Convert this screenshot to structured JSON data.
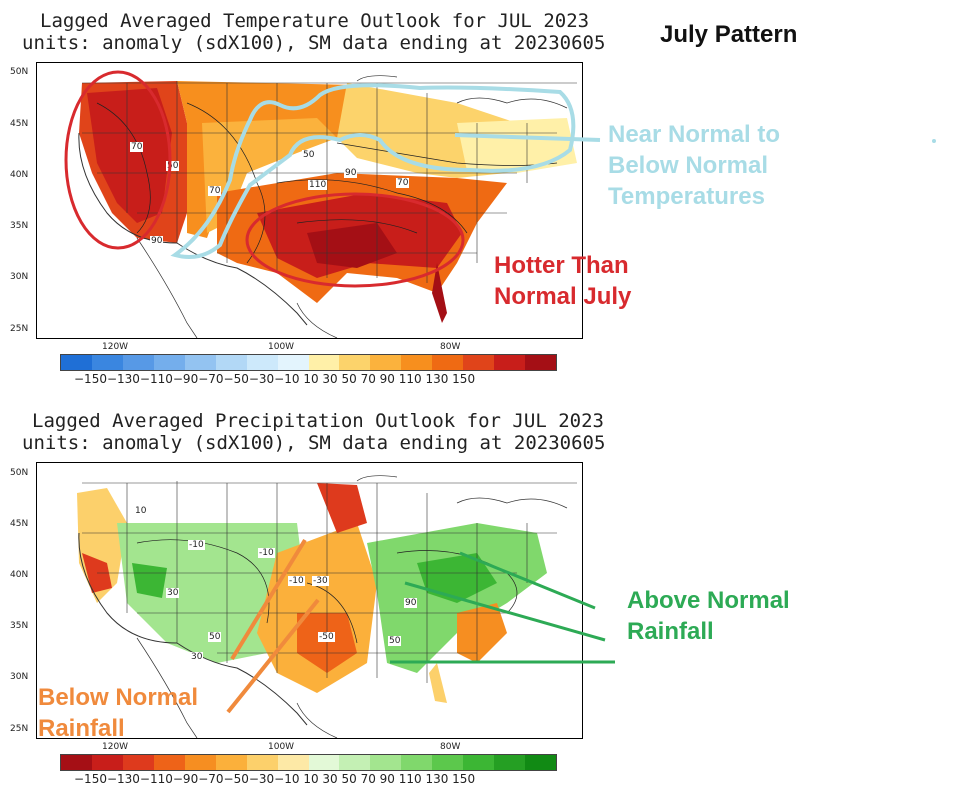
{
  "header": {
    "pattern_title": "July Pattern"
  },
  "temp_panel": {
    "title_line1": "Lagged Averaged Temperature Outlook for JUL 2023",
    "title_line2": "units: anomaly (sdX100), SM data ending at 20230605",
    "lat_labels": [
      "50N",
      "45N",
      "40N",
      "35N",
      "30N",
      "25N"
    ],
    "lon_labels": [
      "120W",
      "100W",
      "80W"
    ],
    "contour_labels": [
      "70",
      "50",
      "70",
      "50",
      "110",
      "90",
      "70",
      "90"
    ],
    "colorbar_ticks": "−150−130−110−90−70−50−30−10 10  30  50  70  90  110 130 150",
    "colors": [
      "#1f6fd6",
      "#3a86e0",
      "#5799e6",
      "#74aeec",
      "#93c3f1",
      "#b2d8f6",
      "#cde9fb",
      "#e3f4fd",
      "#fff0a8",
      "#fcd36b",
      "#fbb23d",
      "#f78f1e",
      "#ef6a13",
      "#e0441a",
      "#c81e1a",
      "#a40f15"
    ]
  },
  "precip_panel": {
    "title_line1": "Lagged Averaged Precipitation Outlook for JUL 2023",
    "title_line2": "units: anomaly (sdX100), SM data ending at 20230605",
    "lat_labels": [
      "50N",
      "45N",
      "40N",
      "35N",
      "30N",
      "25N"
    ],
    "lon_labels": [
      "120W",
      "100W",
      "80W"
    ],
    "contour_labels": [
      "10",
      "-10",
      "-10",
      "-10",
      "-30",
      "30",
      "50",
      "30",
      "-50",
      "90",
      "50"
    ],
    "colorbar_ticks": "−150−130−110−90−70−50−30−10 10  30  50  70  90  110 130 150",
    "colors": [
      "#a50f15",
      "#c81e1a",
      "#de3a1d",
      "#ee6318",
      "#f68e21",
      "#fbb03b",
      "#fcd06b",
      "#fde9a6",
      "#e3f9d7",
      "#c4f0b4",
      "#a3e58f",
      "#80d86c",
      "#5cc84c",
      "#3cb634",
      "#259f23",
      "#118a14"
    ]
  },
  "annotations": {
    "near_normal": "Near Normal to\nBelow Normal\nTemperatures",
    "hotter": "Hotter Than\nNormal July",
    "above_rain": "Above Normal\nRainfall",
    "below_rain": "Below Normal\nRainfall"
  }
}
